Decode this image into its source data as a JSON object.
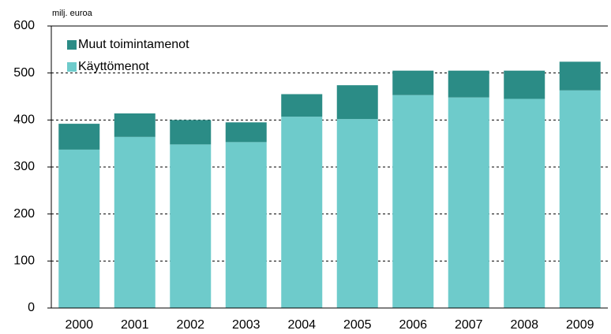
{
  "chart_data": {
    "type": "stacked_bar",
    "axis_label": "milj. euroa",
    "categories": [
      "2000",
      "2001",
      "2002",
      "2003",
      "2004",
      "2005",
      "2006",
      "2007",
      "2008",
      "2009"
    ],
    "series": [
      {
        "name": "Käyttömenot",
        "color": "#6ecbcb",
        "values": [
          337,
          364,
          348,
          353,
          407,
          402,
          453,
          448,
          445,
          463
        ]
      },
      {
        "name": "Muut toimintamenot",
        "color": "#2b8c86",
        "values": [
          55,
          50,
          52,
          42,
          48,
          72,
          52,
          57,
          60,
          61
        ]
      }
    ],
    "ylim": [
      0,
      600
    ],
    "yticks": [
      0,
      100,
      200,
      300,
      400,
      500,
      600
    ],
    "grid": true,
    "legend": "upper left"
  }
}
